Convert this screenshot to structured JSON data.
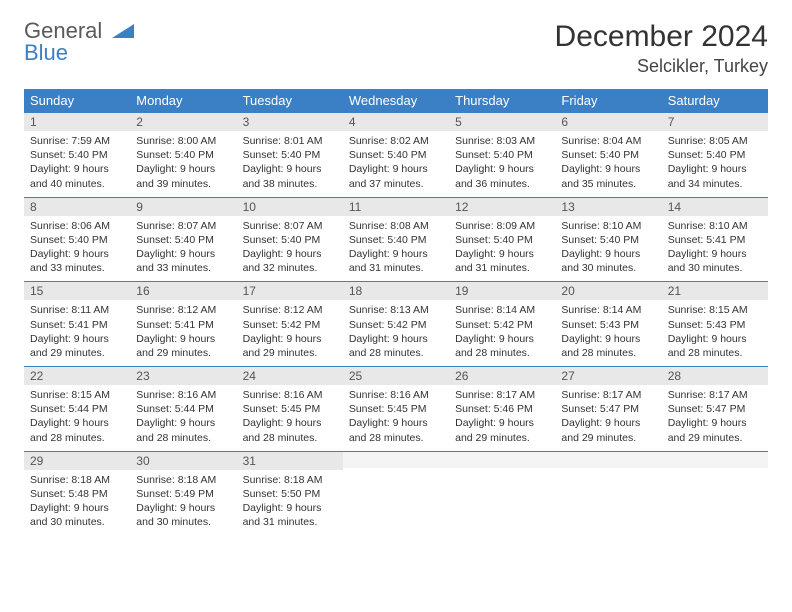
{
  "logo": {
    "line1": "General",
    "line2": "Blue"
  },
  "title": "December 2024",
  "location": "Selcikler, Turkey",
  "colors": {
    "header_bg": "#3b7fc4",
    "header_text": "#ffffff",
    "daynum_bg": "#e8e8e8",
    "border": "#3b7fc4",
    "body_text": "#333333",
    "page_bg": "#ffffff"
  },
  "fonts": {
    "title_size": 30,
    "location_size": 18,
    "th_size": 13,
    "cell_size": 10.5
  },
  "weekdays": [
    "Sunday",
    "Monday",
    "Tuesday",
    "Wednesday",
    "Thursday",
    "Friday",
    "Saturday"
  ],
  "weeks": [
    [
      {
        "n": "1",
        "sr": "Sunrise: 7:59 AM",
        "ss": "Sunset: 5:40 PM",
        "d1": "Daylight: 9 hours",
        "d2": "and 40 minutes."
      },
      {
        "n": "2",
        "sr": "Sunrise: 8:00 AM",
        "ss": "Sunset: 5:40 PM",
        "d1": "Daylight: 9 hours",
        "d2": "and 39 minutes."
      },
      {
        "n": "3",
        "sr": "Sunrise: 8:01 AM",
        "ss": "Sunset: 5:40 PM",
        "d1": "Daylight: 9 hours",
        "d2": "and 38 minutes."
      },
      {
        "n": "4",
        "sr": "Sunrise: 8:02 AM",
        "ss": "Sunset: 5:40 PM",
        "d1": "Daylight: 9 hours",
        "d2": "and 37 minutes."
      },
      {
        "n": "5",
        "sr": "Sunrise: 8:03 AM",
        "ss": "Sunset: 5:40 PM",
        "d1": "Daylight: 9 hours",
        "d2": "and 36 minutes."
      },
      {
        "n": "6",
        "sr": "Sunrise: 8:04 AM",
        "ss": "Sunset: 5:40 PM",
        "d1": "Daylight: 9 hours",
        "d2": "and 35 minutes."
      },
      {
        "n": "7",
        "sr": "Sunrise: 8:05 AM",
        "ss": "Sunset: 5:40 PM",
        "d1": "Daylight: 9 hours",
        "d2": "and 34 minutes."
      }
    ],
    [
      {
        "n": "8",
        "sr": "Sunrise: 8:06 AM",
        "ss": "Sunset: 5:40 PM",
        "d1": "Daylight: 9 hours",
        "d2": "and 33 minutes."
      },
      {
        "n": "9",
        "sr": "Sunrise: 8:07 AM",
        "ss": "Sunset: 5:40 PM",
        "d1": "Daylight: 9 hours",
        "d2": "and 33 minutes."
      },
      {
        "n": "10",
        "sr": "Sunrise: 8:07 AM",
        "ss": "Sunset: 5:40 PM",
        "d1": "Daylight: 9 hours",
        "d2": "and 32 minutes."
      },
      {
        "n": "11",
        "sr": "Sunrise: 8:08 AM",
        "ss": "Sunset: 5:40 PM",
        "d1": "Daylight: 9 hours",
        "d2": "and 31 minutes."
      },
      {
        "n": "12",
        "sr": "Sunrise: 8:09 AM",
        "ss": "Sunset: 5:40 PM",
        "d1": "Daylight: 9 hours",
        "d2": "and 31 minutes."
      },
      {
        "n": "13",
        "sr": "Sunrise: 8:10 AM",
        "ss": "Sunset: 5:40 PM",
        "d1": "Daylight: 9 hours",
        "d2": "and 30 minutes."
      },
      {
        "n": "14",
        "sr": "Sunrise: 8:10 AM",
        "ss": "Sunset: 5:41 PM",
        "d1": "Daylight: 9 hours",
        "d2": "and 30 minutes."
      }
    ],
    [
      {
        "n": "15",
        "sr": "Sunrise: 8:11 AM",
        "ss": "Sunset: 5:41 PM",
        "d1": "Daylight: 9 hours",
        "d2": "and 29 minutes."
      },
      {
        "n": "16",
        "sr": "Sunrise: 8:12 AM",
        "ss": "Sunset: 5:41 PM",
        "d1": "Daylight: 9 hours",
        "d2": "and 29 minutes."
      },
      {
        "n": "17",
        "sr": "Sunrise: 8:12 AM",
        "ss": "Sunset: 5:42 PM",
        "d1": "Daylight: 9 hours",
        "d2": "and 29 minutes."
      },
      {
        "n": "18",
        "sr": "Sunrise: 8:13 AM",
        "ss": "Sunset: 5:42 PM",
        "d1": "Daylight: 9 hours",
        "d2": "and 28 minutes."
      },
      {
        "n": "19",
        "sr": "Sunrise: 8:14 AM",
        "ss": "Sunset: 5:42 PM",
        "d1": "Daylight: 9 hours",
        "d2": "and 28 minutes."
      },
      {
        "n": "20",
        "sr": "Sunrise: 8:14 AM",
        "ss": "Sunset: 5:43 PM",
        "d1": "Daylight: 9 hours",
        "d2": "and 28 minutes."
      },
      {
        "n": "21",
        "sr": "Sunrise: 8:15 AM",
        "ss": "Sunset: 5:43 PM",
        "d1": "Daylight: 9 hours",
        "d2": "and 28 minutes."
      }
    ],
    [
      {
        "n": "22",
        "sr": "Sunrise: 8:15 AM",
        "ss": "Sunset: 5:44 PM",
        "d1": "Daylight: 9 hours",
        "d2": "and 28 minutes."
      },
      {
        "n": "23",
        "sr": "Sunrise: 8:16 AM",
        "ss": "Sunset: 5:44 PM",
        "d1": "Daylight: 9 hours",
        "d2": "and 28 minutes."
      },
      {
        "n": "24",
        "sr": "Sunrise: 8:16 AM",
        "ss": "Sunset: 5:45 PM",
        "d1": "Daylight: 9 hours",
        "d2": "and 28 minutes."
      },
      {
        "n": "25",
        "sr": "Sunrise: 8:16 AM",
        "ss": "Sunset: 5:45 PM",
        "d1": "Daylight: 9 hours",
        "d2": "and 28 minutes."
      },
      {
        "n": "26",
        "sr": "Sunrise: 8:17 AM",
        "ss": "Sunset: 5:46 PM",
        "d1": "Daylight: 9 hours",
        "d2": "and 29 minutes."
      },
      {
        "n": "27",
        "sr": "Sunrise: 8:17 AM",
        "ss": "Sunset: 5:47 PM",
        "d1": "Daylight: 9 hours",
        "d2": "and 29 minutes."
      },
      {
        "n": "28",
        "sr": "Sunrise: 8:17 AM",
        "ss": "Sunset: 5:47 PM",
        "d1": "Daylight: 9 hours",
        "d2": "and 29 minutes."
      }
    ],
    [
      {
        "n": "29",
        "sr": "Sunrise: 8:18 AM",
        "ss": "Sunset: 5:48 PM",
        "d1": "Daylight: 9 hours",
        "d2": "and 30 minutes."
      },
      {
        "n": "30",
        "sr": "Sunrise: 8:18 AM",
        "ss": "Sunset: 5:49 PM",
        "d1": "Daylight: 9 hours",
        "d2": "and 30 minutes."
      },
      {
        "n": "31",
        "sr": "Sunrise: 8:18 AM",
        "ss": "Sunset: 5:50 PM",
        "d1": "Daylight: 9 hours",
        "d2": "and 31 minutes."
      },
      {
        "empty": true
      },
      {
        "empty": true
      },
      {
        "empty": true
      },
      {
        "empty": true
      }
    ]
  ]
}
